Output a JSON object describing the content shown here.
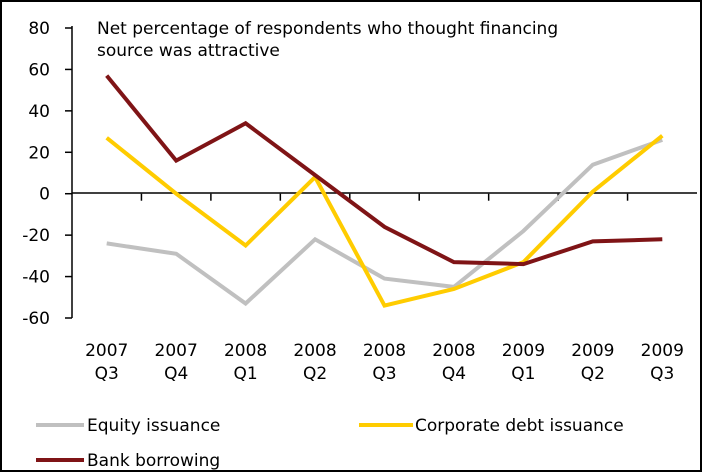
{
  "chart_data": {
    "type": "line",
    "annotation": [
      "Net percentage of respondents who thought financing",
      "source was attractive"
    ],
    "categories": [
      [
        "2007",
        "Q3"
      ],
      [
        "2007",
        "Q4"
      ],
      [
        "2008",
        "Q1"
      ],
      [
        "2008",
        "Q2"
      ],
      [
        "2008",
        "Q3"
      ],
      [
        "2008",
        "Q4"
      ],
      [
        "2009",
        "Q1"
      ],
      [
        "2009",
        "Q2"
      ],
      [
        "2009",
        "Q3"
      ]
    ],
    "ylim": [
      -60,
      80
    ],
    "yticks": [
      80,
      60,
      40,
      20,
      0,
      -20,
      -40,
      -60
    ],
    "ytick_labels": [
      "80",
      "60",
      "40",
      "20",
      "0",
      "-20",
      "-40",
      "-60"
    ],
    "legend_position": "bottom",
    "series": [
      {
        "name": "Equity issuance",
        "color": "#c0c0c0",
        "values": [
          -24,
          -29,
          -53,
          -22,
          -41,
          -45,
          -18,
          14,
          26
        ]
      },
      {
        "name": "Corporate debt issuance",
        "color": "#ffcc00",
        "values": [
          27,
          0,
          -25,
          8,
          -54,
          -46,
          -33,
          1,
          28
        ]
      },
      {
        "name": "Bank borrowing",
        "color": "#7f1416",
        "values": [
          57,
          16,
          34,
          9,
          -16,
          -33,
          -34,
          -23,
          -22
        ]
      }
    ]
  }
}
